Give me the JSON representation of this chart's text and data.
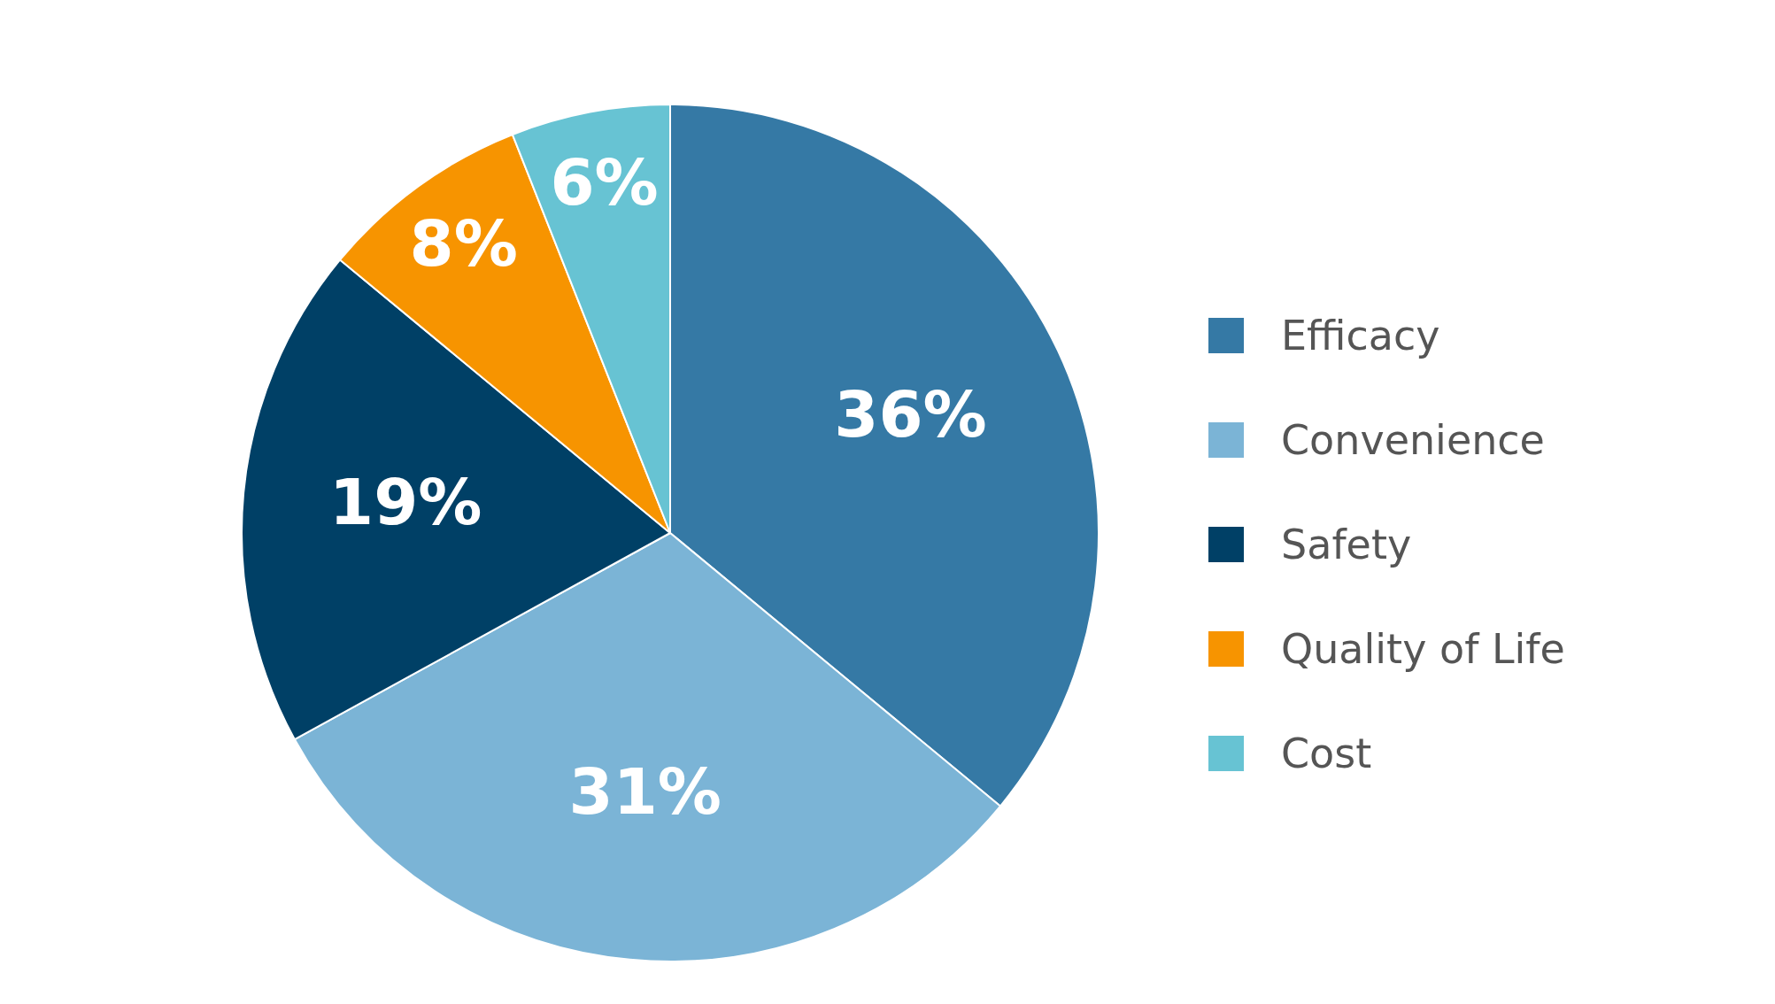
{
  "chart_data": {
    "type": "pie",
    "categories": [
      "Efficacy",
      "Convenience",
      "Safety",
      "Quality of Life",
      "Cost"
    ],
    "values": [
      36,
      31,
      19,
      8,
      6
    ],
    "colors": [
      "#3579a5",
      "#7bb4d6",
      "#004066",
      "#f79400",
      "#67c3d3"
    ],
    "value_labels": [
      "36%",
      "31%",
      "19%",
      "8%",
      "6%"
    ],
    "legend": "right"
  }
}
